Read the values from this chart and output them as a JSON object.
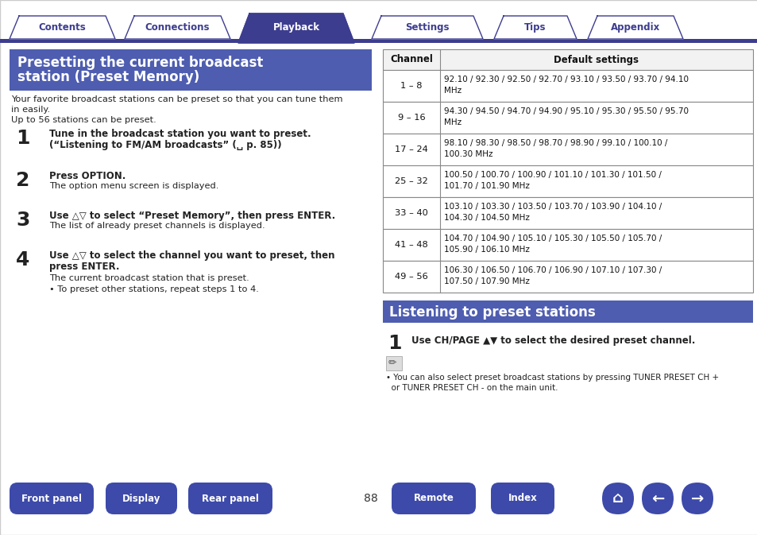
{
  "bg_color": "#ffffff",
  "tab_color_active": "#3d3d8f",
  "tab_color_inactive": "#ffffff",
  "tab_border_color": "#3d3d8f",
  "tab_text_color_active": "#ffffff",
  "tab_text_color_inactive": "#3d3d8f",
  "tabs": [
    "Contents",
    "Connections",
    "Playback",
    "Settings",
    "Tips",
    "Appendix"
  ],
  "active_tab": 2,
  "section1_title_line1": "Presetting the current broadcast",
  "section1_title_line2": "station (Preset Memory)",
  "section1_bg": "#4e5db0",
  "section1_text_color": "#ffffff",
  "body_text_color": "#222222",
  "intro_line1": "Your favorite broadcast stations can be preset so that you can tune them",
  "intro_line2": "in easily.",
  "intro_line3": "Up to 56 stations can be preset.",
  "steps_left": [
    {
      "num": "1",
      "bold_lines": [
        "Tune in the broadcast station you want to preset.",
        "(“Listening to FM/AM broadcasts” (␣ p. 85))"
      ],
      "normal_lines": []
    },
    {
      "num": "2",
      "bold_lines": [
        "Press OPTION."
      ],
      "normal_lines": [
        "The option menu screen is displayed."
      ]
    },
    {
      "num": "3",
      "bold_lines": [
        "Use △▽ to select “Preset Memory”, then press ENTER."
      ],
      "normal_lines": [
        "The list of already preset channels is displayed."
      ]
    },
    {
      "num": "4",
      "bold_lines": [
        "Use △▽ to select the channel you want to preset, then",
        "press ENTER."
      ],
      "normal_lines": [
        "The current broadcast station that is preset.",
        "• To preset other stations, repeat steps 1 to 4."
      ]
    }
  ],
  "table_header": [
    "Channel",
    "Default settings"
  ],
  "table_rows": [
    [
      "1 – 8",
      "92.10 / 92.30 / 92.50 / 92.70 / 93.10 / 93.50 / 93.70 / 94.10\nMHz"
    ],
    [
      "9 – 16",
      "94.30 / 94.50 / 94.70 / 94.90 / 95.10 / 95.30 / 95.50 / 95.70\nMHz"
    ],
    [
      "17 – 24",
      "98.10 / 98.30 / 98.50 / 98.70 / 98.90 / 99.10 / 100.10 /\n100.30 MHz"
    ],
    [
      "25 – 32",
      "100.50 / 100.70 / 100.90 / 101.10 / 101.30 / 101.50 /\n101.70 / 101.90 MHz"
    ],
    [
      "33 – 40",
      "103.10 / 103.30 / 103.50 / 103.70 / 103.90 / 104.10 /\n104.30 / 104.50 MHz"
    ],
    [
      "41 – 48",
      "104.70 / 104.90 / 105.10 / 105.30 / 105.50 / 105.70 /\n105.90 / 106.10 MHz"
    ],
    [
      "49 – 56",
      "106.30 / 106.50 / 106.70 / 106.90 / 107.10 / 107.30 /\n107.50 / 107.90 MHz"
    ]
  ],
  "section2_title": "Listening to preset stations",
  "section2_bg": "#4e5db0",
  "section2_text_color": "#ffffff",
  "step_right_num": "1",
  "step_right_bold": "Use CH/PAGE ▲▼ to select the desired preset channel.",
  "note_line1": "• You can also select preset broadcast stations by pressing TUNER PRESET CH +",
  "note_line2": "  or TUNER PRESET CH - on the main unit.",
  "bottom_buttons": [
    "Front panel",
    "Display",
    "Rear panel",
    "Remote",
    "Index"
  ],
  "page_num": "88",
  "button_color_main": "#3d4aaa",
  "divider_color": "#3d3d8f",
  "table_border": "#888888",
  "col_split": 478
}
